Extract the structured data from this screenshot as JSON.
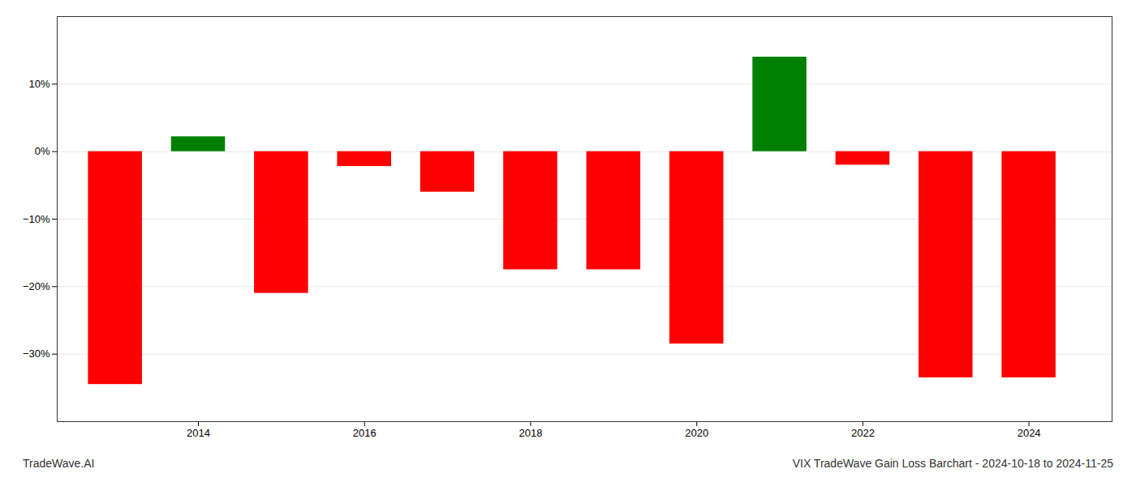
{
  "chart_data": {
    "type": "bar",
    "title": "VIX TradeWave Gain Loss Barchart - 2024-10-18 to 2024-11-25",
    "annotations": [
      "TradeWave.AI"
    ],
    "x": [
      2013,
      2014,
      2015,
      2016,
      2017,
      2018,
      2019,
      2020,
      2021,
      2022,
      2023,
      2024
    ],
    "values": [
      -0.345,
      0.022,
      -0.21,
      -0.022,
      -0.06,
      -0.175,
      -0.175,
      -0.285,
      0.14,
      -0.02,
      -0.335,
      -0.335
    ],
    "colors": [
      "#ff0000",
      "#008000",
      "#ff0000",
      "#ff0000",
      "#ff0000",
      "#ff0000",
      "#ff0000",
      "#ff0000",
      "#008000",
      "#ff0000",
      "#ff0000",
      "#ff0000"
    ],
    "xlim": [
      2012.3,
      2025.0
    ],
    "xticks": [
      2014,
      2016,
      2018,
      2020,
      2022,
      2024
    ],
    "ylim": [
      -0.4,
      0.2
    ],
    "yticks": [
      {
        "value": -0.3,
        "label": "−30%"
      },
      {
        "value": -0.2,
        "label": "−20%"
      },
      {
        "value": -0.1,
        "label": "−10%"
      },
      {
        "value": 0.0,
        "label": "0%"
      },
      {
        "value": 0.1,
        "label": "10%"
      }
    ],
    "grid": true
  }
}
